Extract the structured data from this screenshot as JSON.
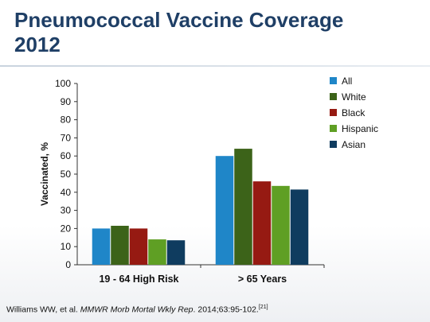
{
  "slide": {
    "title_line1": "Pneumococcal Vaccine Coverage",
    "title_line2": "2012"
  },
  "colors": {
    "title": "#1f3f66",
    "All": "#1f86c8",
    "White": "#3c6319",
    "Black": "#961a12",
    "Hispanic": "#5f9f24",
    "Asian": "#0f3c5f"
  },
  "chart_data": {
    "type": "bar",
    "categories": [
      "19 - 64 High Risk",
      "> 65 Years"
    ],
    "series": [
      {
        "name": "All",
        "values": [
          20,
          60
        ]
      },
      {
        "name": "White",
        "values": [
          21.5,
          64
        ]
      },
      {
        "name": "Black",
        "values": [
          20,
          46
        ]
      },
      {
        "name": "Hispanic",
        "values": [
          14,
          43.5
        ]
      },
      {
        "name": "Asian",
        "values": [
          13.5,
          41.5
        ]
      }
    ],
    "ylabel": "Vaccinated, %",
    "xlabel": "",
    "ylim": [
      0,
      100
    ],
    "yticks": [
      0,
      10,
      20,
      30,
      40,
      50,
      60,
      70,
      80,
      90,
      100
    ],
    "grid": false,
    "legend_position": "top-right"
  },
  "citation": {
    "authors": "Williams WW, et al. ",
    "journal": "MMWR Morb Mortal Wkly Rep",
    "details": ". 2014;63:95-102.",
    "ref": "[21]"
  }
}
